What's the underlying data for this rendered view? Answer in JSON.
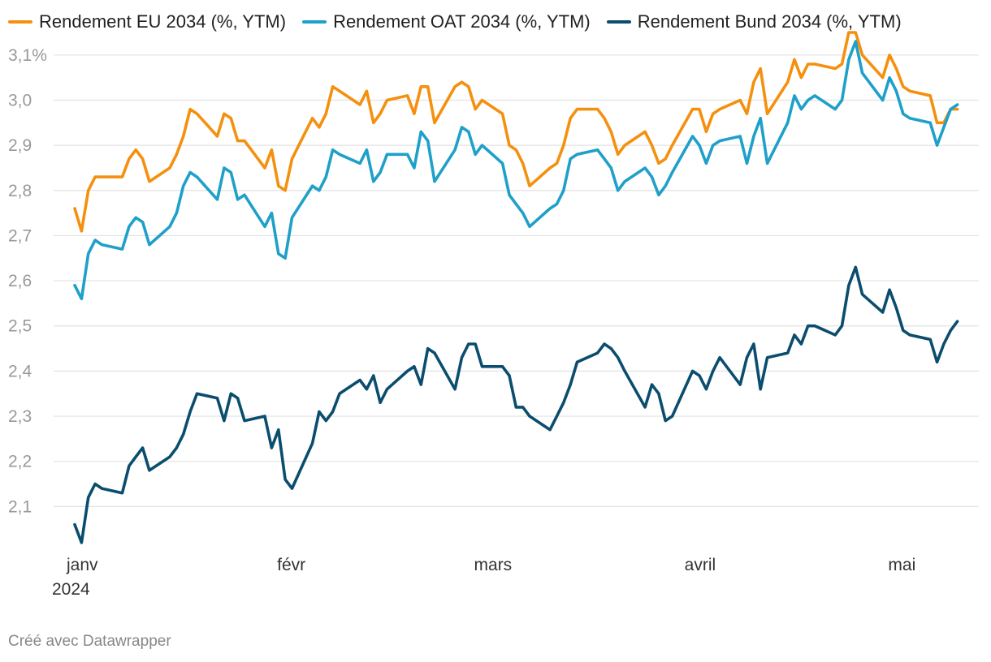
{
  "chart_data": {
    "type": "line",
    "title": "",
    "xlabel": "",
    "ylabel": "",
    "ylim": [
      2.0,
      3.15
    ],
    "y_ticks": [
      2.1,
      2.2,
      2.3,
      2.4,
      2.5,
      2.6,
      2.7,
      2.8,
      2.9,
      3.0,
      3.1
    ],
    "y_tick_labels": [
      "2,1",
      "2,2",
      "2,3",
      "2,4",
      "2,5",
      "2,6",
      "2,7",
      "2,8",
      "2,9",
      "3,0",
      "3,1%"
    ],
    "x_range": [
      "2024-01-01",
      "2024-05-11"
    ],
    "x_ticks": [
      {
        "date": "2024-01-01",
        "label": "janv",
        "sublabel": "2024"
      },
      {
        "date": "2024-02-01",
        "label": "févr",
        "sublabel": ""
      },
      {
        "date": "2024-03-01",
        "label": "mars",
        "sublabel": ""
      },
      {
        "date": "2024-04-01",
        "label": "avril",
        "sublabel": ""
      },
      {
        "date": "2024-05-01",
        "label": "mai",
        "sublabel": ""
      }
    ],
    "grid": true,
    "legend_position": "top-left",
    "x": [
      "2024-01-01",
      "2024-01-02",
      "2024-01-03",
      "2024-01-04",
      "2024-01-05",
      "2024-01-08",
      "2024-01-09",
      "2024-01-10",
      "2024-01-11",
      "2024-01-12",
      "2024-01-15",
      "2024-01-16",
      "2024-01-17",
      "2024-01-18",
      "2024-01-19",
      "2024-01-22",
      "2024-01-23",
      "2024-01-24",
      "2024-01-25",
      "2024-01-26",
      "2024-01-29",
      "2024-01-30",
      "2024-01-31",
      "2024-02-01",
      "2024-02-02",
      "2024-02-05",
      "2024-02-06",
      "2024-02-07",
      "2024-02-08",
      "2024-02-09",
      "2024-02-12",
      "2024-02-13",
      "2024-02-14",
      "2024-02-15",
      "2024-02-16",
      "2024-02-19",
      "2024-02-20",
      "2024-02-21",
      "2024-02-22",
      "2024-02-23",
      "2024-02-26",
      "2024-02-27",
      "2024-02-28",
      "2024-02-29",
      "2024-03-01",
      "2024-03-04",
      "2024-03-05",
      "2024-03-06",
      "2024-03-07",
      "2024-03-08",
      "2024-03-11",
      "2024-03-12",
      "2024-03-13",
      "2024-03-14",
      "2024-03-15",
      "2024-03-18",
      "2024-03-19",
      "2024-03-20",
      "2024-03-21",
      "2024-03-22",
      "2024-03-25",
      "2024-03-26",
      "2024-03-27",
      "2024-03-28",
      "2024-03-29",
      "2024-04-01",
      "2024-04-02",
      "2024-04-03",
      "2024-04-04",
      "2024-04-05",
      "2024-04-08",
      "2024-04-09",
      "2024-04-10",
      "2024-04-11",
      "2024-04-12",
      "2024-04-15",
      "2024-04-16",
      "2024-04-17",
      "2024-04-18",
      "2024-04-19",
      "2024-04-22",
      "2024-04-23",
      "2024-04-24",
      "2024-04-25",
      "2024-04-26",
      "2024-04-29",
      "2024-04-30",
      "2024-05-01",
      "2024-05-02",
      "2024-05-03",
      "2024-05-06",
      "2024-05-07",
      "2024-05-08",
      "2024-05-09",
      "2024-05-10"
    ],
    "series": [
      {
        "name": "Rendement EU 2034 (%, YTM)",
        "color": "#f5900f",
        "values": [
          2.76,
          2.71,
          2.8,
          2.83,
          2.83,
          2.83,
          2.87,
          2.89,
          2.87,
          2.82,
          2.85,
          2.88,
          2.92,
          2.98,
          2.97,
          2.92,
          2.97,
          2.96,
          2.91,
          2.91,
          2.85,
          2.89,
          2.81,
          2.8,
          2.87,
          2.96,
          2.94,
          2.97,
          3.03,
          3.02,
          2.99,
          3.02,
          2.95,
          2.97,
          3.0,
          3.01,
          2.97,
          3.03,
          3.03,
          2.95,
          3.03,
          3.04,
          3.03,
          2.98,
          3.0,
          2.97,
          2.9,
          2.89,
          2.86,
          2.81,
          2.85,
          2.86,
          2.9,
          2.96,
          2.98,
          2.98,
          2.96,
          2.93,
          2.88,
          2.9,
          2.93,
          2.9,
          2.86,
          2.87,
          2.9,
          2.98,
          2.98,
          2.93,
          2.97,
          2.98,
          3.0,
          2.97,
          3.04,
          3.07,
          2.97,
          3.04,
          3.09,
          3.05,
          3.08,
          3.08,
          3.07,
          3.08,
          3.15,
          3.15,
          3.1,
          3.05,
          3.1,
          3.07,
          3.03,
          3.02,
          3.01,
          2.95,
          2.95,
          2.98,
          2.98
        ]
      },
      {
        "name": "Rendement OAT 2034 (%, YTM)",
        "color": "#1fa0c9",
        "values": [
          2.59,
          2.56,
          2.66,
          2.69,
          2.68,
          2.67,
          2.72,
          2.74,
          2.73,
          2.68,
          2.72,
          2.75,
          2.81,
          2.84,
          2.83,
          2.78,
          2.85,
          2.84,
          2.78,
          2.79,
          2.72,
          2.75,
          2.66,
          2.65,
          2.74,
          2.81,
          2.8,
          2.83,
          2.89,
          2.88,
          2.86,
          2.89,
          2.82,
          2.84,
          2.88,
          2.88,
          2.85,
          2.93,
          2.91,
          2.82,
          2.89,
          2.94,
          2.93,
          2.88,
          2.9,
          2.86,
          2.79,
          2.77,
          2.75,
          2.72,
          2.76,
          2.77,
          2.8,
          2.87,
          2.88,
          2.89,
          2.87,
          2.85,
          2.8,
          2.82,
          2.85,
          2.83,
          2.79,
          2.81,
          2.84,
          2.92,
          2.9,
          2.86,
          2.9,
          2.91,
          2.92,
          2.86,
          2.92,
          2.96,
          2.86,
          2.95,
          3.01,
          2.98,
          3.0,
          3.01,
          2.98,
          3.0,
          3.09,
          3.13,
          3.06,
          3.0,
          3.05,
          3.02,
          2.97,
          2.96,
          2.95,
          2.9,
          2.94,
          2.98,
          2.99
        ]
      },
      {
        "name": "Rendement Bund 2034 (%, YTM)",
        "color": "#0b4d6e",
        "values": [
          2.06,
          2.02,
          2.12,
          2.15,
          2.14,
          2.13,
          2.19,
          2.21,
          2.23,
          2.18,
          2.21,
          2.23,
          2.26,
          2.31,
          2.35,
          2.34,
          2.29,
          2.35,
          2.34,
          2.29,
          2.3,
          2.23,
          2.27,
          2.16,
          2.14,
          2.24,
          2.31,
          2.29,
          2.31,
          2.35,
          2.38,
          2.36,
          2.39,
          2.33,
          2.36,
          2.4,
          2.41,
          2.37,
          2.45,
          2.44,
          2.36,
          2.43,
          2.46,
          2.46,
          2.41,
          2.41,
          2.39,
          2.32,
          2.32,
          2.3,
          2.27,
          2.3,
          2.33,
          2.37,
          2.42,
          2.44,
          2.46,
          2.45,
          2.43,
          2.4,
          2.32,
          2.37,
          2.35,
          2.29,
          2.3,
          2.4,
          2.39,
          2.36,
          2.4,
          2.43,
          2.37,
          2.43,
          2.46,
          2.36,
          2.43,
          2.44,
          2.48,
          2.46,
          2.5,
          2.5,
          2.48,
          2.5,
          2.59,
          2.63,
          2.57,
          2.53,
          2.58,
          2.54,
          2.49,
          2.48,
          2.47,
          2.42,
          2.46,
          2.49,
          2.51
        ]
      }
    ]
  },
  "footer": {
    "credit": "Créé avec Datawrapper"
  }
}
